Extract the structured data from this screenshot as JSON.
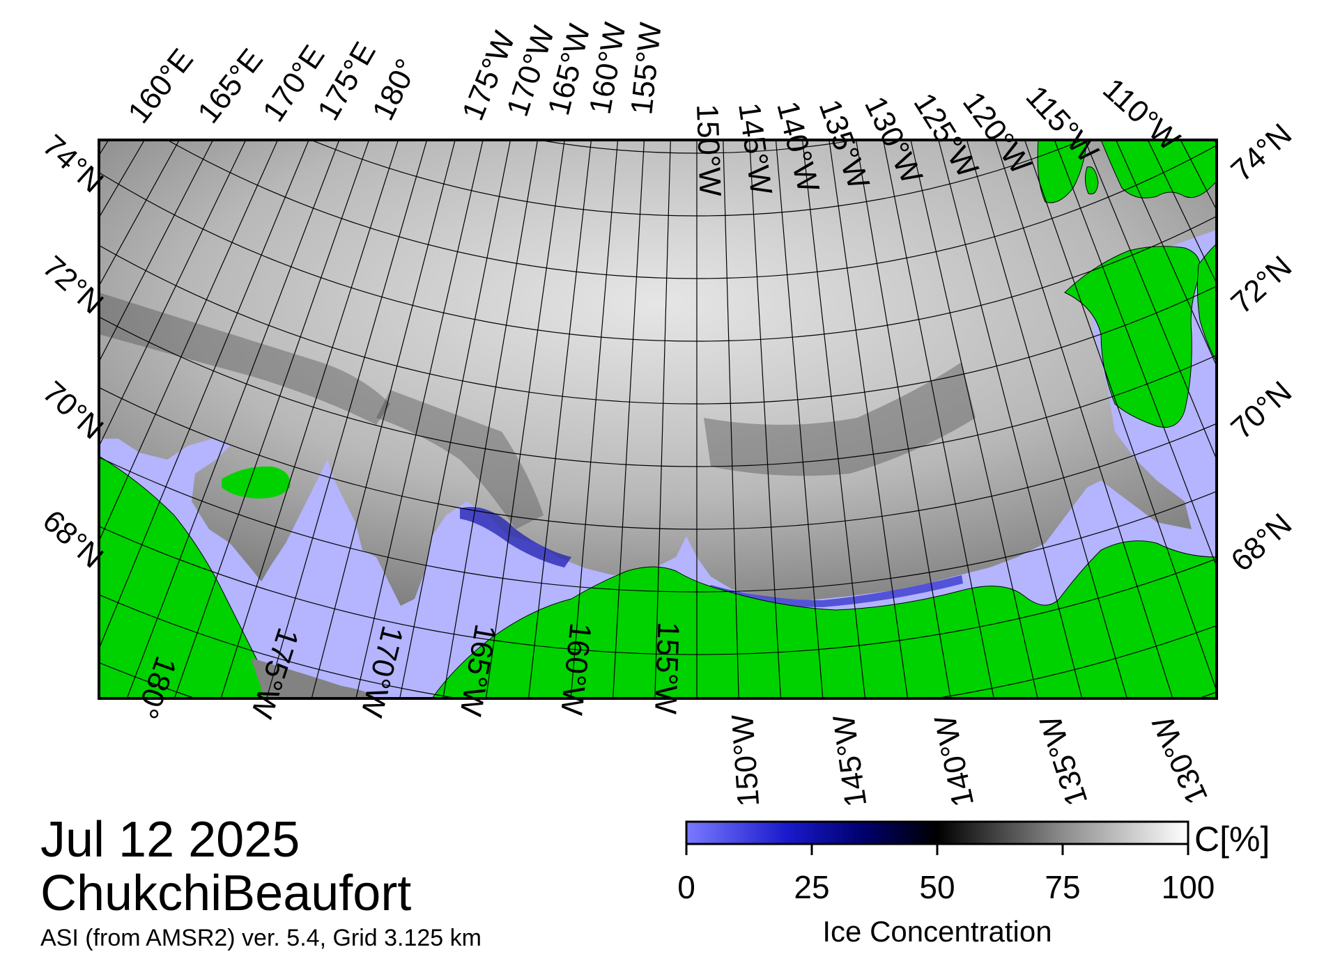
{
  "title": {
    "date": "Jul 12 2025",
    "region": "ChukchiBeaufort",
    "source": "ASI (from AMSR2) ver. 5.4,  Grid 3.125 km"
  },
  "colorbar": {
    "label": "Ice Concentration",
    "unit": "C[%]",
    "ticks": [
      "0",
      "25",
      "50",
      "75",
      "100"
    ],
    "range": [
      0,
      100
    ],
    "stops": [
      {
        "value": 0,
        "color": "#7a7aff"
      },
      {
        "value": 20,
        "color": "#1a1acc"
      },
      {
        "value": 35,
        "color": "#00006e"
      },
      {
        "value": 50,
        "color": "#000000"
      },
      {
        "value": 75,
        "color": "#8c8c8c"
      },
      {
        "value": 100,
        "color": "#ffffff"
      }
    ]
  },
  "labels": {
    "top": [
      "160°E",
      "165°E",
      "170°E",
      "175°E",
      "180°",
      "175°W",
      "170°W",
      "165°W",
      "160°W",
      "155°W",
      "150°W",
      "145°W",
      "140°W",
      "135°W",
      "130°W",
      "125°W",
      "120°W",
      "115°W",
      "110°W"
    ],
    "bottom": [
      "180°",
      "175°W",
      "170°W",
      "165°W",
      "160°W",
      "155°W",
      "150°W",
      "145°W",
      "140°W",
      "135°W",
      "130°W"
    ],
    "left": [
      "74°N",
      "72°N",
      "70°N",
      "68°N"
    ],
    "right": [
      "74°N",
      "72°N",
      "70°N",
      "68°N"
    ]
  },
  "colors": {
    "land": "#00d200",
    "open_water": "#b4b4ff",
    "no_data": "#828282",
    "grid": "#000000",
    "frame": "#000000"
  }
}
